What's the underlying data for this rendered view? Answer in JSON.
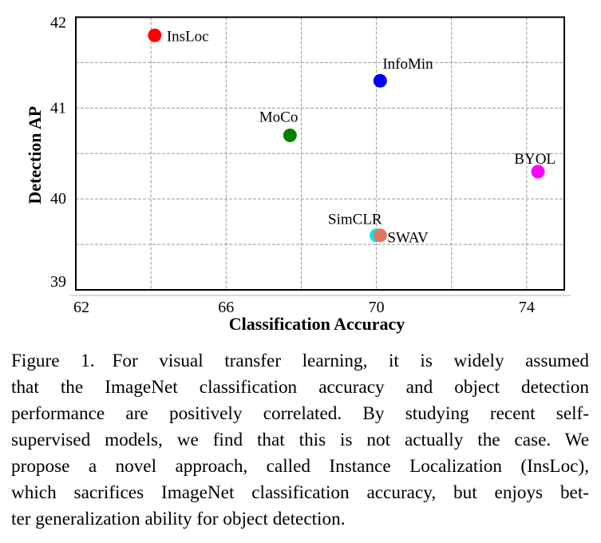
{
  "chart_data": {
    "type": "scatter",
    "title": "",
    "xlabel": "Classification Accuracy",
    "ylabel": "Detection AP",
    "xlim": [
      62,
      75
    ],
    "ylim": [
      39,
      42
    ],
    "xticks": [
      62,
      66,
      70,
      74
    ],
    "yticks": [
      39,
      40,
      41,
      42
    ],
    "xgrid_step": 2,
    "ygrid_step": 0.5,
    "grid": true,
    "legend": "none",
    "points": [
      {
        "name": "InsLoc",
        "x": 64.1,
        "y": 41.8,
        "color": "#ff0000",
        "label_pos": "right"
      },
      {
        "name": "InfoMin",
        "x": 70.1,
        "y": 41.3,
        "color": "#0000ff",
        "label_pos": "above-right"
      },
      {
        "name": "MoCo",
        "x": 67.7,
        "y": 40.7,
        "color": "#008000",
        "label_pos": "above-left"
      },
      {
        "name": "BYOL",
        "x": 74.3,
        "y": 40.3,
        "color": "#ff00ff",
        "label_pos": "above-left"
      },
      {
        "name": "SimCLR",
        "x": 70.0,
        "y": 39.6,
        "color": "#00e5ee",
        "label_pos": "above-left"
      },
      {
        "name": "SWAV",
        "x": 70.1,
        "y": 39.6,
        "color": "#e27461",
        "label_pos": "right"
      }
    ]
  },
  "caption": {
    "figure_label": "Figure 1.",
    "lines": [
      "For visual transfer learning, it is widely assumed",
      "that the ImageNet classification accuracy and object detection",
      "performance are positively correlated.  By studying recent self-",
      "supervised models, we find that this is not actually the case.  We",
      "propose a novel approach, called Instance Localization (InsLoc),",
      "which sacrifices ImageNet classification accuracy, but enjoys bet-",
      "ter generalization ability for object detection."
    ]
  }
}
